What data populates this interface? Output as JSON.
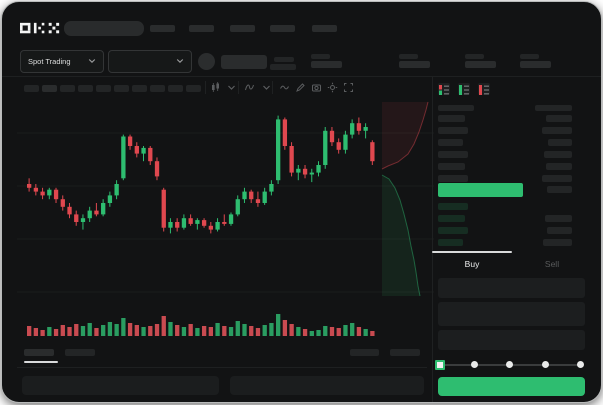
{
  "brand": {
    "name": "OKX"
  },
  "nav": {
    "item_count": 5,
    "search": {
      "value": "",
      "placeholder": ""
    }
  },
  "subheader": {
    "market_selector_label": "Spot Trading",
    "stats_count": 4
  },
  "chart_toolbar": {
    "timeframe_count": 10,
    "icons": [
      "candles-icon",
      "chevron-down-icon",
      "indicators-icon",
      "chevron-down-icon",
      "line-style-icon",
      "draw-icon",
      "camera-icon",
      "settings-icon",
      "fullscreen-icon"
    ]
  },
  "orderbook": {
    "mode_icons": [
      "book-combined-icon",
      "book-bids-icon",
      "book-asks-icon"
    ],
    "ask_row_count": 6,
    "bid_row_count": 4
  },
  "trade_panel": {
    "buy_tab_label": "Buy",
    "sell_tab_label": "Sell",
    "field_count": 3,
    "slider_stop_count": 5,
    "slider_active_index": 0
  },
  "colors": {
    "up": "#2ebd70",
    "down": "#e0484f",
    "volume_up": "#2a9d61",
    "volume_down": "#c94b51",
    "accent_button": "#2ebd70",
    "tab_active_text": "#eceded",
    "tab_inactive_text": "#595b5c"
  },
  "chart_data": {
    "type": "candlestick",
    "note": "values normalized 0-100 of visible pane",
    "ylim": [
      0,
      100
    ],
    "grid": true,
    "candles": [
      [
        60,
        63,
        56,
        58
      ],
      [
        58,
        60,
        54,
        56
      ],
      [
        56,
        58,
        52,
        54
      ],
      [
        54,
        58,
        52,
        57
      ],
      [
        57,
        58,
        50,
        52
      ],
      [
        52,
        54,
        46,
        48
      ],
      [
        48,
        50,
        42,
        44
      ],
      [
        44,
        46,
        38,
        40
      ],
      [
        40,
        44,
        36,
        42
      ],
      [
        42,
        48,
        40,
        46
      ],
      [
        46,
        50,
        43,
        44
      ],
      [
        44,
        52,
        43,
        50
      ],
      [
        50,
        56,
        48,
        54
      ],
      [
        54,
        62,
        52,
        60
      ],
      [
        63,
        86,
        62,
        85
      ],
      [
        85,
        86,
        78,
        80
      ],
      [
        80,
        82,
        74,
        76
      ],
      [
        76,
        80,
        72,
        79
      ],
      [
        79,
        80,
        70,
        72
      ],
      [
        72,
        74,
        62,
        64
      ],
      [
        57,
        58,
        35,
        37
      ],
      [
        37,
        42,
        34,
        40
      ],
      [
        40,
        42,
        35,
        37
      ],
      [
        37,
        44,
        36,
        42
      ],
      [
        42,
        44,
        38,
        39
      ],
      [
        39,
        42,
        36,
        41
      ],
      [
        41,
        42,
        37,
        38
      ],
      [
        38,
        40,
        34,
        36
      ],
      [
        36,
        42,
        35,
        40
      ],
      [
        40,
        44,
        38,
        39
      ],
      [
        39,
        45,
        38,
        44
      ],
      [
        44,
        54,
        43,
        52
      ],
      [
        52,
        58,
        50,
        56
      ],
      [
        56,
        57,
        50,
        52
      ],
      [
        52,
        56,
        48,
        50
      ],
      [
        50,
        58,
        49,
        56
      ],
      [
        56,
        62,
        54,
        60
      ],
      [
        62,
        96,
        60,
        94
      ],
      [
        94,
        95,
        78,
        80
      ],
      [
        80,
        82,
        64,
        66
      ],
      [
        66,
        70,
        62,
        68
      ],
      [
        68,
        70,
        63,
        65
      ],
      [
        65,
        68,
        61,
        66
      ],
      [
        66,
        72,
        64,
        70
      ],
      [
        70,
        90,
        68,
        88
      ],
      [
        88,
        90,
        80,
        82
      ],
      [
        82,
        84,
        76,
        78
      ],
      [
        78,
        88,
        76,
        86
      ],
      [
        86,
        94,
        84,
        92
      ],
      [
        92,
        95,
        86,
        88
      ],
      [
        88,
        92,
        84,
        90
      ],
      [
        82,
        83,
        70,
        72
      ]
    ],
    "volume": [
      10,
      8,
      6,
      9,
      7,
      11,
      9,
      12,
      10,
      13,
      8,
      11,
      14,
      12,
      18,
      13,
      11,
      9,
      10,
      12,
      20,
      14,
      11,
      9,
      12,
      8,
      10,
      9,
      13,
      10,
      9,
      15,
      12,
      10,
      8,
      11,
      13,
      22,
      16,
      12,
      9,
      7,
      5,
      6,
      10,
      9,
      8,
      11,
      13,
      9,
      7,
      5
    ],
    "depth": {
      "asks_area": [
        [
          365,
          2
        ],
        [
          411,
          2
        ],
        [
          409,
          10
        ],
        [
          406,
          20
        ],
        [
          402,
          32
        ],
        [
          397,
          44
        ],
        [
          391,
          54
        ],
        [
          381,
          62
        ],
        [
          371,
          66
        ],
        [
          365,
          69
        ]
      ],
      "bids_area": [
        [
          365,
          75
        ],
        [
          372,
          79
        ],
        [
          378,
          88
        ],
        [
          383,
          100
        ],
        [
          387,
          114
        ],
        [
          391,
          130
        ],
        [
          394,
          146
        ],
        [
          397,
          160
        ],
        [
          399,
          172
        ],
        [
          401,
          186
        ],
        [
          403,
          196
        ],
        [
          365,
          196
        ]
      ]
    }
  }
}
